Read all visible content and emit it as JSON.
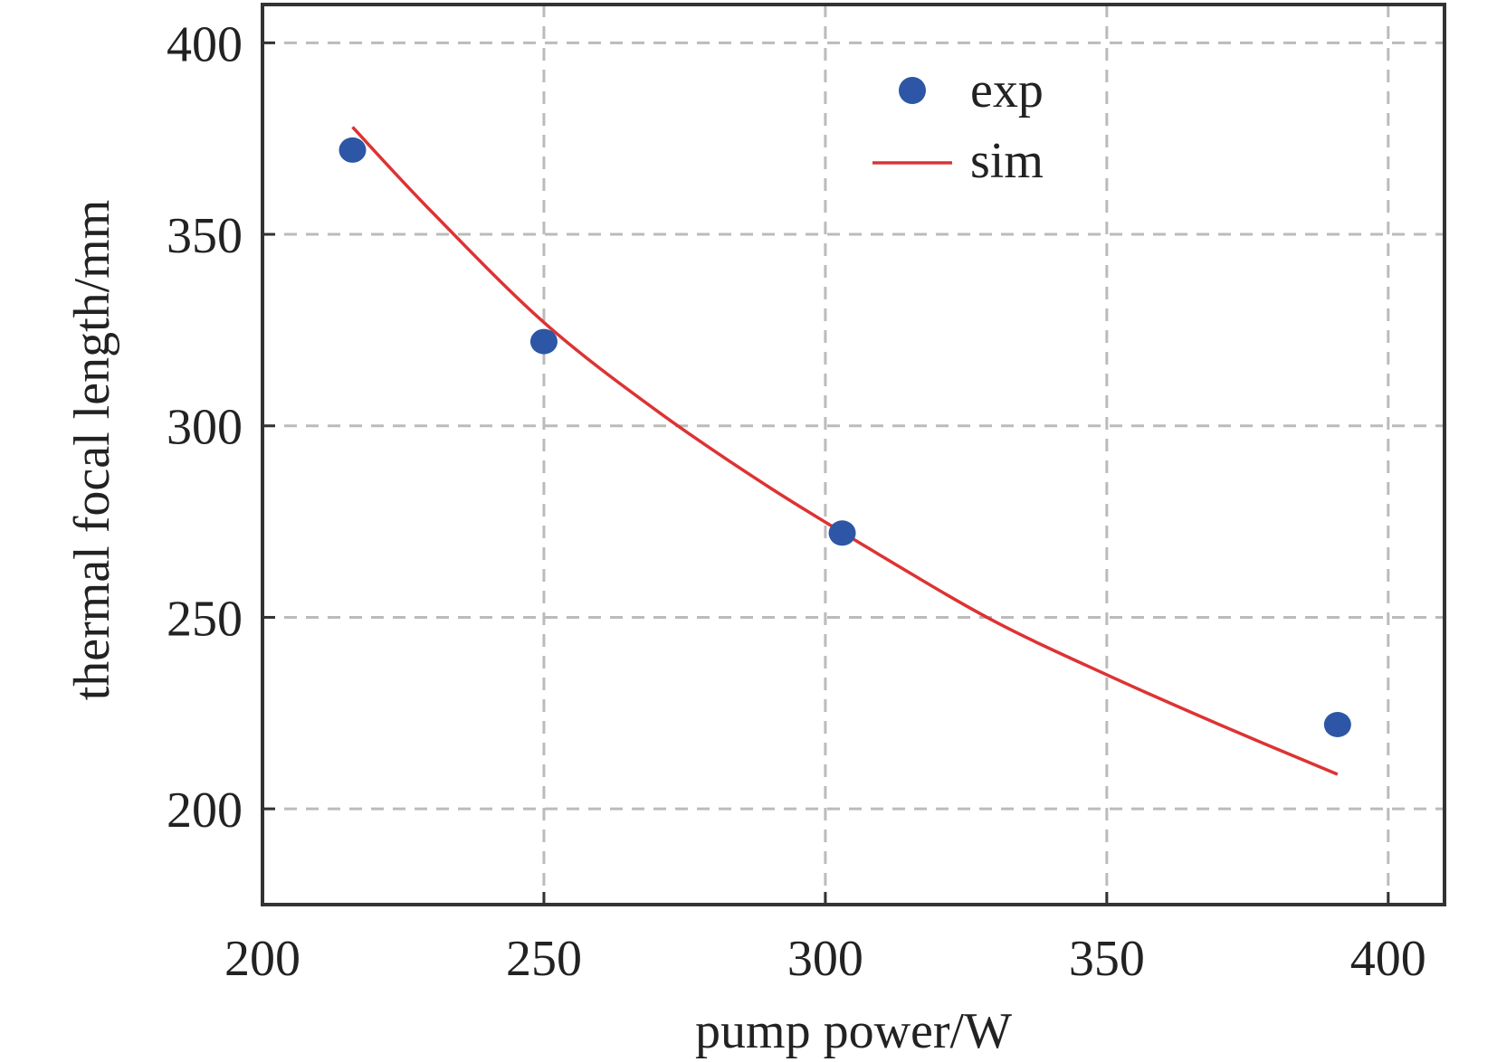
{
  "chart_data": {
    "type": "scatter",
    "xlabel": "pump power/W",
    "ylabel": "thermal focal length/mm",
    "xlim": [
      200,
      410
    ],
    "ylim": [
      175,
      410
    ],
    "x_ticks": [
      "200",
      "250",
      "300",
      "350",
      "400"
    ],
    "y_ticks": [
      "200",
      "250",
      "300",
      "350",
      "400"
    ],
    "x_tick_values": [
      200,
      250,
      300,
      350,
      400
    ],
    "y_tick_values": [
      200,
      250,
      300,
      350,
      400
    ],
    "grid": true,
    "legend_position": "top-center",
    "series": [
      {
        "name": "exp",
        "kind": "scatter",
        "color": "#2d56a6",
        "points": [
          {
            "x": 216,
            "y": 372
          },
          {
            "x": 250,
            "y": 322
          },
          {
            "x": 303,
            "y": 272
          },
          {
            "x": 391,
            "y": 222
          }
        ]
      },
      {
        "name": "sim",
        "kind": "line",
        "color": "#dd3333",
        "points": [
          {
            "x": 216,
            "y": 378
          },
          {
            "x": 230,
            "y": 356
          },
          {
            "x": 250,
            "y": 327
          },
          {
            "x": 270,
            "y": 304
          },
          {
            "x": 290,
            "y": 284
          },
          {
            "x": 310,
            "y": 266
          },
          {
            "x": 330,
            "y": 249
          },
          {
            "x": 350,
            "y": 235
          },
          {
            "x": 370,
            "y": 222
          },
          {
            "x": 391,
            "y": 209
          }
        ]
      }
    ]
  }
}
